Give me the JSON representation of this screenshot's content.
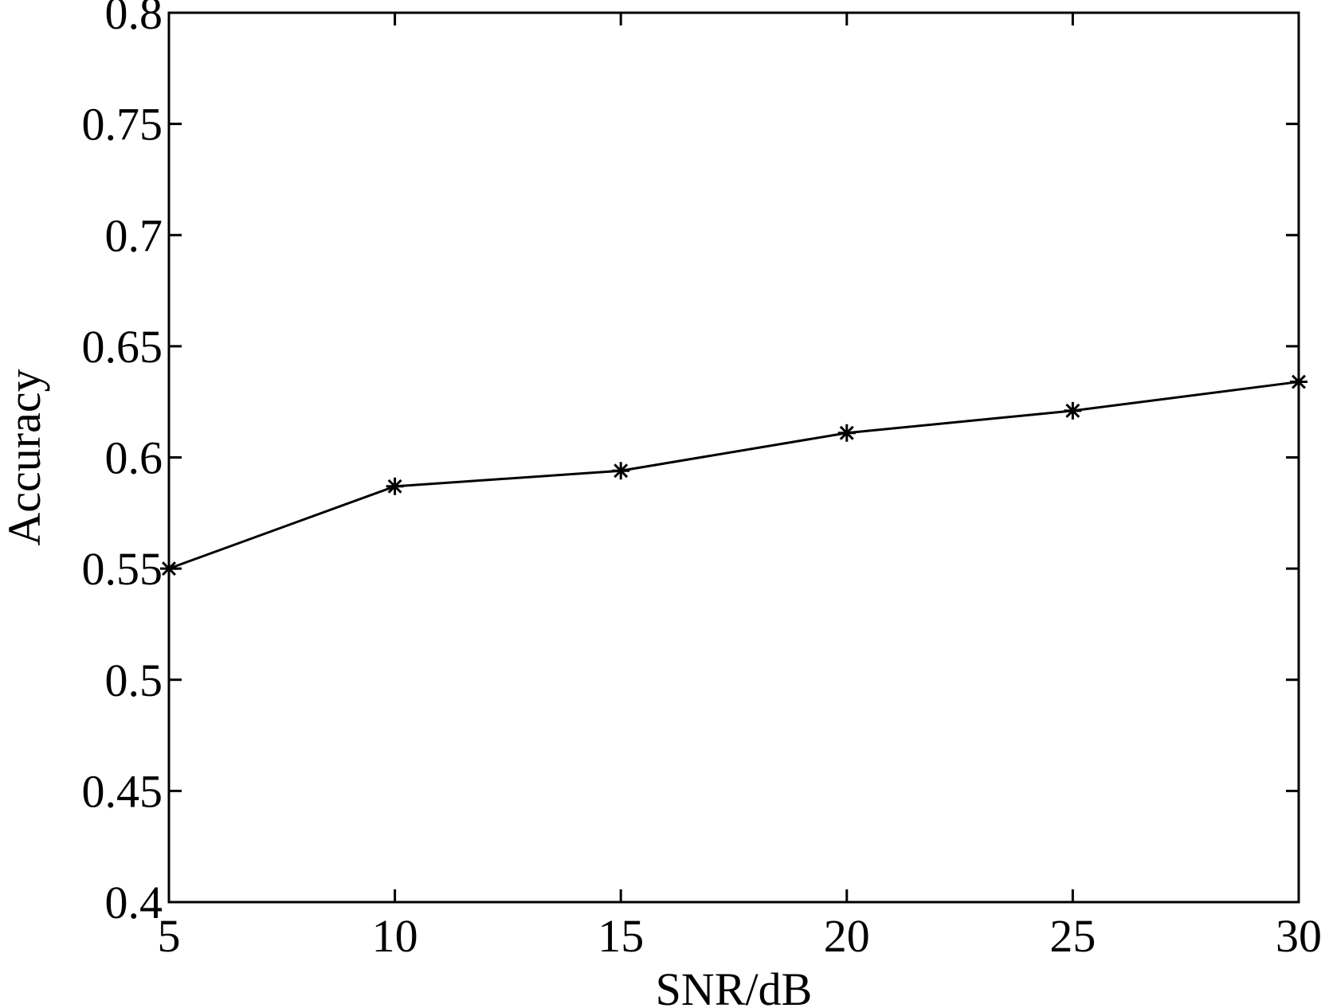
{
  "chart_data": {
    "type": "line",
    "title": "",
    "xlabel": "SNR/dB",
    "ylabel": "Accuracy",
    "xlim": [
      5,
      30
    ],
    "ylim": [
      0.4,
      0.8
    ],
    "x_ticks": [
      5,
      10,
      15,
      20,
      25,
      30
    ],
    "x_tick_labels": [
      "5",
      "10",
      "15",
      "20",
      "25",
      "30"
    ],
    "y_ticks": [
      0.4,
      0.45,
      0.5,
      0.55,
      0.6,
      0.65,
      0.7,
      0.75,
      0.8
    ],
    "y_tick_labels": [
      "0.4",
      "0.45",
      "0.5",
      "0.55",
      "0.6",
      "0.65",
      "0.7",
      "0.75",
      "0.8"
    ],
    "grid": false,
    "legend": "none",
    "series": [
      {
        "x": [
          5,
          10,
          15,
          20,
          25,
          30
        ],
        "values": [
          0.55,
          0.587,
          0.594,
          0.611,
          0.621,
          0.634
        ],
        "marker": "asterisk",
        "color": "#000000"
      }
    ]
  }
}
